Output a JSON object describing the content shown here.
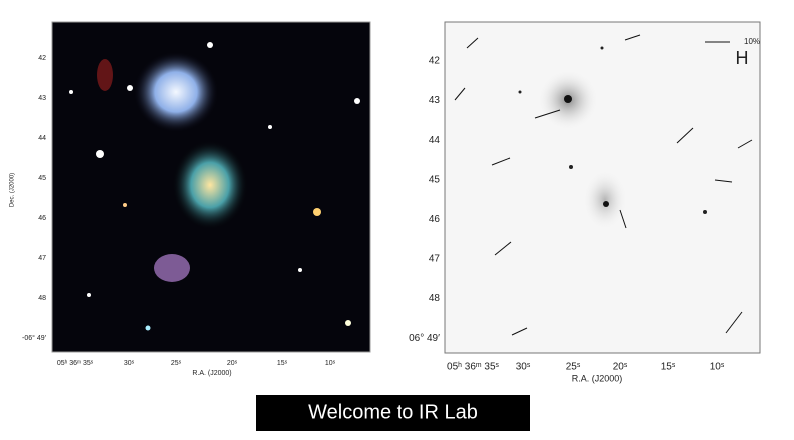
{
  "left_panel": {
    "y_ticks": [
      "42",
      "43",
      "44",
      "45",
      "46",
      "47",
      "48",
      "-06° 49′"
    ],
    "y_label": "Dec. (J2000)",
    "x_ticks": [
      "05ʰ 36ᵐ 35ˢ",
      "30ˢ",
      "25ˢ",
      "20ˢ",
      "15ˢ",
      "10ˢ"
    ],
    "x_label": "R.A. (J2000)"
  },
  "right_panel": {
    "y_ticks": [
      "42",
      "43",
      "44",
      "45",
      "46",
      "47",
      "48",
      "06° 49′"
    ],
    "x_ticks": [
      "05ʰ 36ᵐ 35ˢ",
      "30ˢ",
      "25ˢ",
      "20ˢ",
      "15ˢ",
      "10ˢ"
    ],
    "x_label": "R.A. (J2000)",
    "band": "H",
    "scale_label": "10%"
  },
  "banner": "Welcome to IR Lab"
}
